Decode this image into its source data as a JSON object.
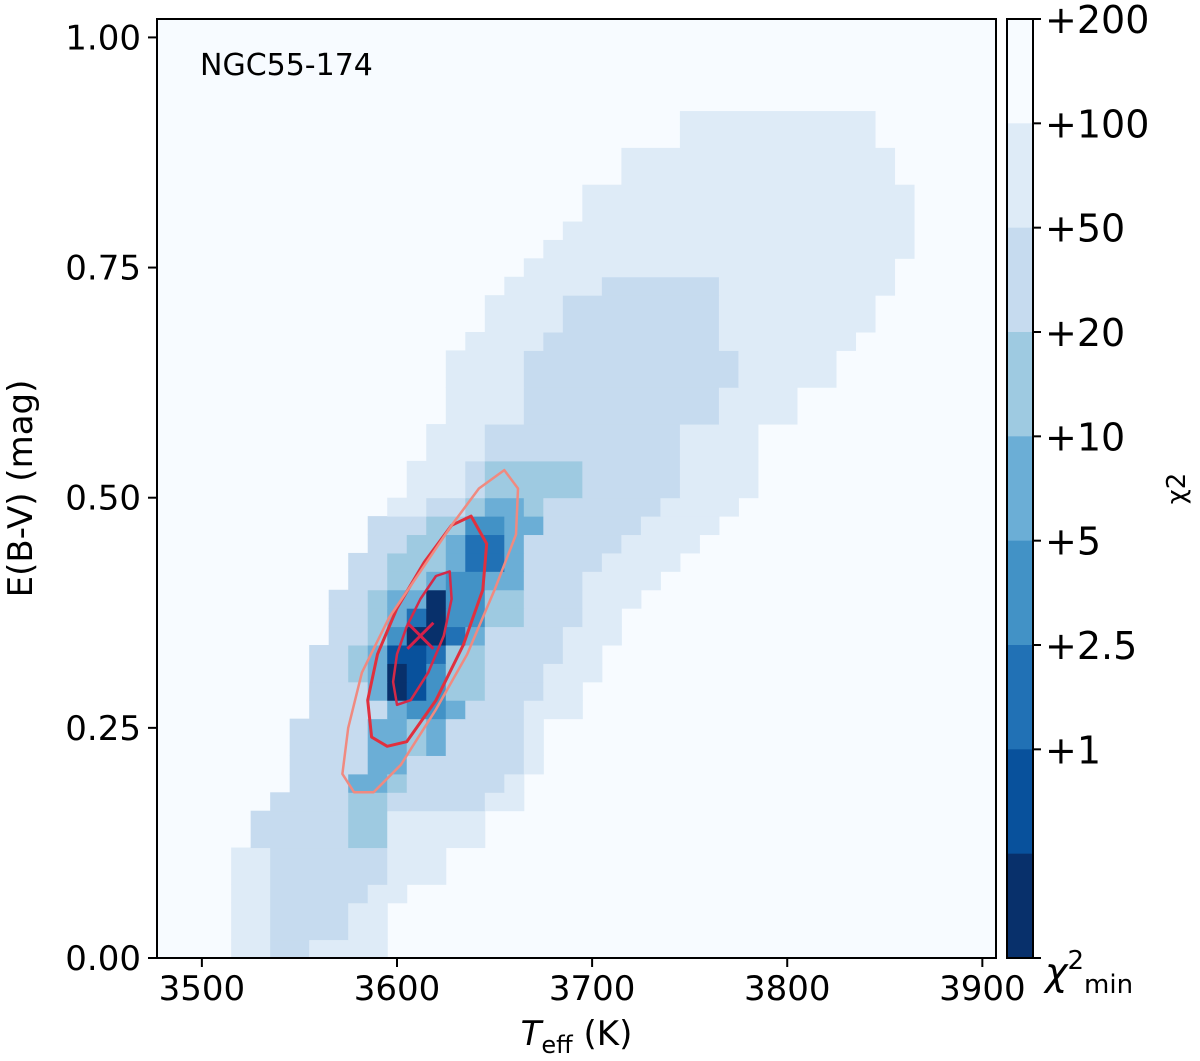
{
  "chart_data": {
    "type": "heatmap",
    "annotation": "NGC55-174",
    "xlabel": {
      "main": "T",
      "sub": "eff",
      "unit": " (K)"
    },
    "ylabel": "E(B-V) (mag)",
    "xlim": [
      3477,
      3907
    ],
    "ylim": [
      0,
      1.02
    ],
    "xticks": [
      3500,
      3600,
      3700,
      3800,
      3900
    ],
    "xtick_labels": [
      "3500",
      "3600",
      "3700",
      "3800",
      "3900"
    ],
    "yticks": [
      0,
      0.25,
      0.5,
      0.75,
      1.0
    ],
    "ytick_labels": [
      "0.00",
      "0.25",
      "0.50",
      "0.75",
      "1.00"
    ],
    "grid": false,
    "colorbar": {
      "label": "χ2",
      "tick_labels": [
        "+200",
        "+100",
        "+50",
        "+20",
        "+10",
        "+5",
        "+2.5",
        "+1"
      ],
      "min_label": {
        "main": "χ",
        "sup": "2",
        "sub": "min"
      },
      "colors": [
        "#08306b",
        "#08519c",
        "#2171b5",
        "#4292c6",
        "#6baed6",
        "#9ecae1",
        "#c6dbef",
        "#deebf7",
        "#f7fbff"
      ]
    },
    "cells_note": "rows list [Teff_start, Teff_end, level] for each E(B-V) band of height 0.02; level 0 = min ... 8 = background",
    "rows": [
      {
        "y": [
          0.0,
          0.02
        ],
        "runs": [
          [
            3515,
            3535,
            7
          ],
          [
            3535,
            3555,
            6
          ],
          [
            3555,
            3595,
            7
          ]
        ]
      },
      {
        "y": [
          0.02,
          0.06
        ],
        "runs": [
          [
            3515,
            3535,
            7
          ],
          [
            3535,
            3575,
            6
          ],
          [
            3575,
            3595,
            7
          ]
        ]
      },
      {
        "y": [
          0.06,
          0.08
        ],
        "runs": [
          [
            3515,
            3535,
            7
          ],
          [
            3535,
            3585,
            6
          ],
          [
            3585,
            3605,
            7
          ]
        ]
      },
      {
        "y": [
          0.08,
          0.12
        ],
        "runs": [
          [
            3515,
            3535,
            7
          ],
          [
            3535,
            3595,
            6
          ],
          [
            3595,
            3625,
            7
          ]
        ]
      },
      {
        "y": [
          0.12,
          0.16
        ],
        "runs": [
          [
            3525,
            3575,
            6
          ],
          [
            3575,
            3595,
            5
          ],
          [
            3595,
            3645,
            7
          ]
        ]
      },
      {
        "y": [
          0.16,
          0.18
        ],
        "runs": [
          [
            3535,
            3575,
            6
          ],
          [
            3575,
            3595,
            5
          ],
          [
            3595,
            3645,
            6
          ],
          [
            3645,
            3665,
            7
          ]
        ]
      },
      {
        "y": [
          0.18,
          0.2
        ],
        "runs": [
          [
            3545,
            3575,
            6
          ],
          [
            3575,
            3595,
            4
          ],
          [
            3595,
            3605,
            5
          ],
          [
            3605,
            3655,
            6
          ],
          [
            3655,
            3665,
            7
          ]
        ]
      },
      {
        "y": [
          0.2,
          0.22
        ],
        "runs": [
          [
            3545,
            3585,
            6
          ],
          [
            3585,
            3605,
            4
          ],
          [
            3605,
            3665,
            6
          ],
          [
            3665,
            3675,
            7
          ]
        ]
      },
      {
        "y": [
          0.22,
          0.26
        ],
        "runs": [
          [
            3545,
            3585,
            6
          ],
          [
            3585,
            3605,
            4
          ],
          [
            3605,
            3615,
            5
          ],
          [
            3615,
            3625,
            4
          ],
          [
            3625,
            3665,
            6
          ],
          [
            3665,
            3675,
            7
          ]
        ]
      },
      {
        "y": [
          0.26,
          0.28
        ],
        "runs": [
          [
            3555,
            3595,
            6
          ],
          [
            3595,
            3605,
            4
          ],
          [
            3605,
            3625,
            3
          ],
          [
            3625,
            3635,
            4
          ],
          [
            3635,
            3665,
            6
          ],
          [
            3665,
            3695,
            7
          ]
        ]
      },
      {
        "y": [
          0.28,
          0.3
        ],
        "runs": [
          [
            3555,
            3585,
            6
          ],
          [
            3585,
            3595,
            4
          ],
          [
            3595,
            3605,
            0
          ],
          [
            3605,
            3615,
            1
          ],
          [
            3615,
            3625,
            3
          ],
          [
            3625,
            3645,
            5
          ],
          [
            3645,
            3675,
            6
          ],
          [
            3675,
            3695,
            7
          ]
        ]
      },
      {
        "y": [
          0.3,
          0.32
        ],
        "runs": [
          [
            3555,
            3575,
            6
          ],
          [
            3575,
            3585,
            5
          ],
          [
            3585,
            3595,
            4
          ],
          [
            3595,
            3605,
            0
          ],
          [
            3605,
            3615,
            1
          ],
          [
            3615,
            3625,
            3
          ],
          [
            3625,
            3645,
            5
          ],
          [
            3645,
            3675,
            6
          ],
          [
            3675,
            3705,
            7
          ]
        ]
      },
      {
        "y": [
          0.32,
          0.34
        ],
        "runs": [
          [
            3555,
            3575,
            6
          ],
          [
            3575,
            3585,
            5
          ],
          [
            3585,
            3595,
            4
          ],
          [
            3595,
            3615,
            1
          ],
          [
            3615,
            3625,
            2
          ],
          [
            3625,
            3645,
            5
          ],
          [
            3645,
            3685,
            6
          ],
          [
            3685,
            3705,
            7
          ]
        ]
      },
      {
        "y": [
          0.34,
          0.36
        ],
        "runs": [
          [
            3565,
            3585,
            6
          ],
          [
            3585,
            3595,
            5
          ],
          [
            3595,
            3605,
            3
          ],
          [
            3605,
            3625,
            0
          ],
          [
            3625,
            3635,
            2
          ],
          [
            3635,
            3645,
            4
          ],
          [
            3645,
            3685,
            6
          ],
          [
            3685,
            3715,
            7
          ]
        ]
      },
      {
        "y": [
          0.36,
          0.38
        ],
        "runs": [
          [
            3565,
            3585,
            6
          ],
          [
            3585,
            3595,
            5
          ],
          [
            3595,
            3605,
            4
          ],
          [
            3605,
            3615,
            2
          ],
          [
            3615,
            3625,
            0
          ],
          [
            3625,
            3645,
            3
          ],
          [
            3645,
            3665,
            5
          ],
          [
            3665,
            3695,
            6
          ],
          [
            3695,
            3715,
            7
          ]
        ]
      },
      {
        "y": [
          0.38,
          0.4
        ],
        "runs": [
          [
            3565,
            3585,
            6
          ],
          [
            3585,
            3595,
            5
          ],
          [
            3595,
            3615,
            4
          ],
          [
            3615,
            3625,
            0
          ],
          [
            3625,
            3645,
            3
          ],
          [
            3645,
            3665,
            5
          ],
          [
            3665,
            3695,
            6
          ],
          [
            3695,
            3725,
            7
          ]
        ]
      },
      {
        "y": [
          0.4,
          0.42
        ],
        "runs": [
          [
            3575,
            3595,
            6
          ],
          [
            3595,
            3615,
            5
          ],
          [
            3615,
            3625,
            4
          ],
          [
            3625,
            3645,
            3
          ],
          [
            3645,
            3665,
            4
          ],
          [
            3665,
            3695,
            6
          ],
          [
            3695,
            3735,
            7
          ]
        ]
      },
      {
        "y": [
          0.42,
          0.44
        ],
        "runs": [
          [
            3575,
            3595,
            6
          ],
          [
            3595,
            3625,
            5
          ],
          [
            3625,
            3635,
            4
          ],
          [
            3635,
            3655,
            2
          ],
          [
            3655,
            3665,
            4
          ],
          [
            3665,
            3705,
            6
          ],
          [
            3705,
            3745,
            7
          ]
        ]
      },
      {
        "y": [
          0.44,
          0.46
        ],
        "runs": [
          [
            3585,
            3605,
            6
          ],
          [
            3605,
            3625,
            5
          ],
          [
            3625,
            3635,
            4
          ],
          [
            3635,
            3655,
            2
          ],
          [
            3655,
            3665,
            4
          ],
          [
            3665,
            3715,
            6
          ],
          [
            3715,
            3755,
            7
          ]
        ]
      },
      {
        "y": [
          0.46,
          0.48
        ],
        "runs": [
          [
            3585,
            3615,
            6
          ],
          [
            3615,
            3635,
            5
          ],
          [
            3635,
            3655,
            3
          ],
          [
            3655,
            3675,
            4
          ],
          [
            3675,
            3725,
            6
          ],
          [
            3725,
            3765,
            7
          ]
        ]
      },
      {
        "y": [
          0.48,
          0.5
        ],
        "runs": [
          [
            3595,
            3615,
            7
          ],
          [
            3615,
            3635,
            6
          ],
          [
            3635,
            3645,
            5
          ],
          [
            3645,
            3665,
            4
          ],
          [
            3665,
            3675,
            5
          ],
          [
            3675,
            3735,
            6
          ],
          [
            3735,
            3775,
            7
          ]
        ]
      },
      {
        "y": [
          0.5,
          0.54
        ],
        "runs": [
          [
            3605,
            3635,
            7
          ],
          [
            3635,
            3645,
            6
          ],
          [
            3645,
            3665,
            5
          ],
          [
            3665,
            3695,
            5
          ],
          [
            3695,
            3745,
            6
          ],
          [
            3745,
            3785,
            7
          ]
        ]
      },
      {
        "y": [
          0.54,
          0.58
        ],
        "runs": [
          [
            3615,
            3645,
            7
          ],
          [
            3645,
            3745,
            6
          ],
          [
            3745,
            3785,
            7
          ]
        ]
      },
      {
        "y": [
          0.58,
          0.62
        ],
        "runs": [
          [
            3625,
            3665,
            7
          ],
          [
            3665,
            3765,
            6
          ],
          [
            3765,
            3805,
            7
          ]
        ]
      },
      {
        "y": [
          0.62,
          0.66
        ],
        "runs": [
          [
            3625,
            3665,
            7
          ],
          [
            3665,
            3775,
            6
          ],
          [
            3775,
            3825,
            7
          ]
        ]
      },
      {
        "y": [
          0.66,
          0.68
        ],
        "runs": [
          [
            3635,
            3675,
            7
          ],
          [
            3675,
            3765,
            6
          ],
          [
            3765,
            3835,
            7
          ]
        ]
      },
      {
        "y": [
          0.68,
          0.72
        ],
        "runs": [
          [
            3645,
            3685,
            7
          ],
          [
            3685,
            3765,
            6
          ],
          [
            3765,
            3845,
            7
          ]
        ]
      },
      {
        "y": [
          0.72,
          0.74
        ],
        "runs": [
          [
            3655,
            3705,
            7
          ],
          [
            3705,
            3765,
            6
          ],
          [
            3765,
            3855,
            7
          ]
        ]
      },
      {
        "y": [
          0.74,
          0.76
        ],
        "runs": [
          [
            3665,
            3855,
            7
          ]
        ]
      },
      {
        "y": [
          0.76,
          0.78
        ],
        "runs": [
          [
            3675,
            3865,
            7
          ]
        ]
      },
      {
        "y": [
          0.78,
          0.8
        ],
        "runs": [
          [
            3685,
            3865,
            7
          ]
        ]
      },
      {
        "y": [
          0.8,
          0.84
        ],
        "runs": [
          [
            3695,
            3865,
            7
          ]
        ]
      },
      {
        "y": [
          0.84,
          0.88
        ],
        "runs": [
          [
            3715,
            3855,
            7
          ]
        ]
      },
      {
        "y": [
          0.88,
          0.92
        ],
        "runs": [
          [
            3745,
            3845,
            7
          ]
        ]
      }
    ],
    "contours": [
      {
        "name": "inner",
        "color": "#d42a48",
        "width": 2.5,
        "points": [
          [
            3598,
            0.3
          ],
          [
            3600,
            0.33
          ],
          [
            3605,
            0.36
          ],
          [
            3612,
            0.39
          ],
          [
            3620,
            0.415
          ],
          [
            3627,
            0.42
          ],
          [
            3628,
            0.39
          ],
          [
            3624,
            0.35
          ],
          [
            3616,
            0.31
          ],
          [
            3607,
            0.28
          ],
          [
            3600,
            0.275
          ],
          [
            3598,
            0.3
          ]
        ]
      },
      {
        "name": "middle",
        "color": "#e0303e",
        "width": 3,
        "points": [
          [
            3587,
            0.24
          ],
          [
            3585,
            0.28
          ],
          [
            3590,
            0.33
          ],
          [
            3600,
            0.38
          ],
          [
            3614,
            0.43
          ],
          [
            3628,
            0.47
          ],
          [
            3638,
            0.48
          ],
          [
            3646,
            0.45
          ],
          [
            3644,
            0.4
          ],
          [
            3634,
            0.34
          ],
          [
            3620,
            0.28
          ],
          [
            3605,
            0.235
          ],
          [
            3595,
            0.23
          ],
          [
            3587,
            0.24
          ]
        ]
      },
      {
        "name": "outer",
        "color": "#f08a80",
        "width": 2.5,
        "points": [
          [
            3572,
            0.2
          ],
          [
            3575,
            0.25
          ],
          [
            3582,
            0.31
          ],
          [
            3596,
            0.37
          ],
          [
            3612,
            0.42
          ],
          [
            3628,
            0.47
          ],
          [
            3642,
            0.51
          ],
          [
            3655,
            0.53
          ],
          [
            3662,
            0.51
          ],
          [
            3661,
            0.46
          ],
          [
            3650,
            0.4
          ],
          [
            3636,
            0.33
          ],
          [
            3620,
            0.27
          ],
          [
            3602,
            0.21
          ],
          [
            3588,
            0.18
          ],
          [
            3578,
            0.18
          ],
          [
            3572,
            0.2
          ]
        ]
      }
    ],
    "best_fit": {
      "marker": "x",
      "Teff": 3612,
      "E(B-V)": 0.35,
      "color": "#d4204a"
    }
  }
}
